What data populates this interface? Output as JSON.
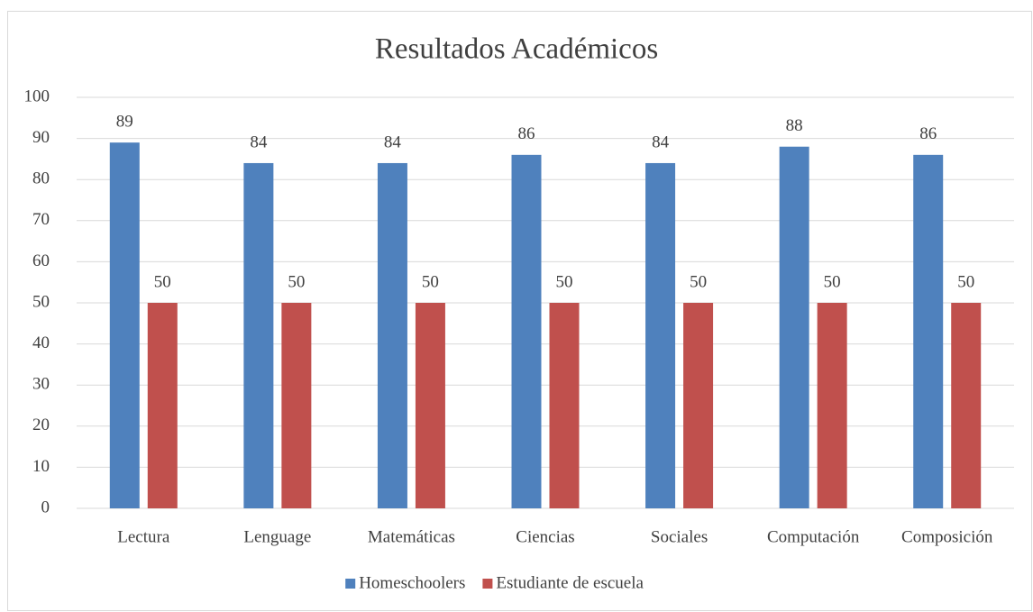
{
  "chart_data": {
    "type": "bar",
    "title": "Resultados Académicos",
    "categories": [
      "Lectura",
      "Lenguage",
      "Matemáticas",
      "Ciencias",
      "Sociales",
      "Computación",
      "Composición"
    ],
    "series": [
      {
        "name": "Homeschoolers",
        "color": "#4f81bd",
        "values": [
          89,
          84,
          84,
          86,
          84,
          88,
          86
        ]
      },
      {
        "name": "Estudiante de escuela",
        "color": "#c0504d",
        "values": [
          50,
          50,
          50,
          50,
          50,
          50,
          50
        ]
      }
    ],
    "ylim": [
      0,
      100
    ],
    "yticks": [
      0,
      10,
      20,
      30,
      40,
      50,
      60,
      70,
      80,
      90,
      100
    ],
    "grid": true,
    "legend": "bottom"
  }
}
